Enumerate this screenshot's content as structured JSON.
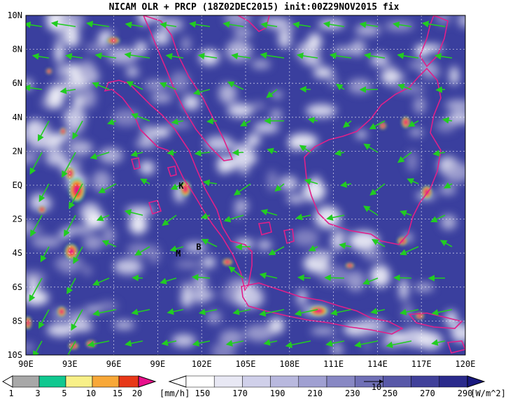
{
  "title": "NICAM OLR + PRCP (18Z02DEC2015) init:00Z29NOV2015 fix",
  "map": {
    "lat_labels": [
      "10N",
      "8N",
      "6N",
      "4N",
      "2N",
      "EQ",
      "2S",
      "4S",
      "6S",
      "8S",
      "10S"
    ],
    "lon_labels": [
      "90E",
      "93E",
      "96E",
      "99E",
      "102E",
      "105E",
      "108E",
      "111E",
      "114E",
      "117E",
      "120E"
    ],
    "lat_values": [
      10,
      8,
      6,
      4,
      2,
      0,
      -2,
      -4,
      -6,
      -8,
      -10
    ],
    "lon_values": [
      90,
      93,
      96,
      99,
      102,
      105,
      108,
      111,
      114,
      117,
      120
    ],
    "station_labels": [
      {
        "text": "K",
        "lon": 100.6,
        "lat": -0.2
      },
      {
        "text": "M",
        "lon": 100.4,
        "lat": -4.2
      },
      {
        "text": "B",
        "lon": 101.8,
        "lat": -3.8
      }
    ],
    "background_color": "#3a3f9e",
    "coast_color": "#e0208a",
    "wind_color": "#22cc22"
  },
  "precip_legend": {
    "ticks": [
      "1",
      "3",
      "5",
      "10",
      "15",
      "20"
    ],
    "unit": "[mm/h]",
    "colors": [
      "#a8a8a8",
      "#10c890",
      "#f8f088",
      "#f8a838",
      "#e83818",
      "#e8108c"
    ]
  },
  "olr_legend": {
    "ticks": [
      "150",
      "170",
      "190",
      "210",
      "230",
      "250",
      "270",
      "290"
    ],
    "unit": "[W/m^2]",
    "vector_label": "10",
    "colors": [
      "#ffffff",
      "#e8e8f4",
      "#d0d0ea",
      "#b8b8de",
      "#a0a0d2",
      "#8888c4",
      "#7070b6",
      "#5858a8",
      "#40409a",
      "#2a2a8c",
      "#18187e"
    ]
  }
}
